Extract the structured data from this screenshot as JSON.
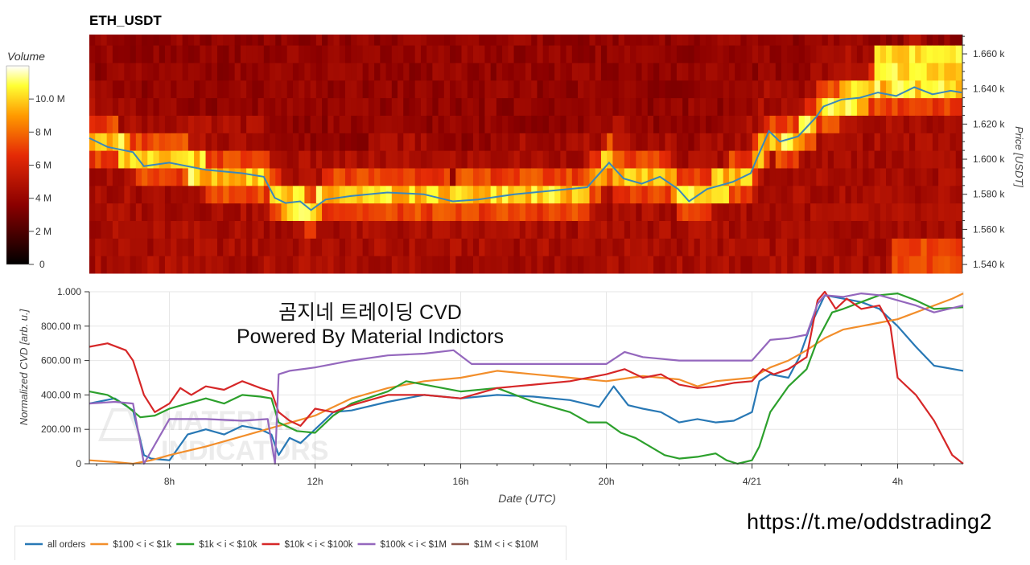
{
  "title": "ETH_USDT",
  "watermark": {
    "line1": "곰지네 트레이딩 CVD",
    "line2": "Powered By Material Indictors",
    "logo_text": [
      "MATERIAL",
      "INDICATORS"
    ]
  },
  "footer_url": "https://t.me/oddstrading2",
  "colors": {
    "all_orders": "#2878b5",
    "100_1k": "#f28e2b",
    "1k_10k": "#2ca02c",
    "10k_100k": "#d62728",
    "100k_1m": "#9467bd",
    "1m_10m": "#8c564b"
  },
  "chart_data": [
    {
      "type": "heatmap",
      "title": "ETH_USDT",
      "colorbar": {
        "label": "Volume",
        "ticks": [
          "0",
          "2 M",
          "4 M",
          "6 M",
          "8 M",
          "10.0 M"
        ],
        "tick_values": [
          0,
          2000000,
          4000000,
          6000000,
          8000000,
          10000000
        ],
        "range": [
          0,
          12000000
        ]
      },
      "y_axis": {
        "label": "Price [USDT]",
        "position": "right",
        "ticks": [
          "1.540 k",
          "1.560 k",
          "1.580 k",
          "1.600 k",
          "1.620 k",
          "1.640 k",
          "1.660 k"
        ],
        "tick_values": [
          1540,
          1560,
          1580,
          1600,
          1620,
          1640,
          1660
        ],
        "range": [
          1535,
          1671
        ]
      },
      "x_range_hours": [
        5.8,
        29.8
      ],
      "price_levels": [
        1540,
        1550,
        1560,
        1570,
        1580,
        1590,
        1600,
        1610,
        1620,
        1630,
        1640,
        1650,
        1660,
        1670
      ],
      "price_series": {
        "name": "price",
        "x_hours": [
          5.8,
          6.3,
          7.0,
          7.3,
          8.0,
          9.0,
          10.0,
          10.6,
          10.9,
          11.2,
          11.6,
          11.9,
          12.3,
          13.0,
          14.0,
          15.0,
          15.8,
          16.5,
          17.5,
          18.5,
          19.5,
          20.1,
          20.5,
          21.0,
          21.5,
          22.0,
          22.3,
          22.8,
          23.5,
          24.0,
          24.2,
          24.5,
          24.8,
          25.3,
          25.8,
          26.0,
          26.5,
          27.0,
          27.5,
          28.0,
          28.5,
          29.0,
          29.5,
          29.8
        ],
        "values": [
          1612,
          1607,
          1604,
          1596,
          1598,
          1594,
          1592,
          1590,
          1578,
          1575,
          1576,
          1571,
          1577,
          1579,
          1581,
          1580,
          1576,
          1577,
          1580,
          1582,
          1584,
          1598,
          1589,
          1586,
          1590,
          1583,
          1576,
          1583,
          1587,
          1592,
          1602,
          1616,
          1610,
          1613,
          1624,
          1630,
          1634,
          1635,
          1638,
          1636,
          1641,
          1637,
          1639,
          1638
        ]
      },
      "intensity_note": "volume by price band over time, 0-12M scale"
    },
    {
      "type": "line",
      "x_label": "Date (UTC)",
      "y_label": "Normalized CVD [arb. u.]",
      "x_ticks": [
        "8h",
        "12h",
        "16h",
        "20h",
        "4/21",
        "4h"
      ],
      "x_tick_values_hours": [
        8,
        12,
        16,
        20,
        24,
        28
      ],
      "x_range_hours": [
        5.8,
        29.8
      ],
      "y_ticks": [
        "0",
        "200.00 m",
        "400.00 m",
        "600.00 m",
        "800.00 m",
        "1.000"
      ],
      "y_tick_values": [
        0,
        0.2,
        0.4,
        0.6,
        0.8,
        1.0
      ],
      "ylim": [
        0,
        1.0
      ],
      "grid": true,
      "legend_position": "bottom",
      "series": [
        {
          "name": "all orders",
          "color_key": "all_orders",
          "x": [
            5.8,
            6.5,
            7.0,
            7.3,
            7.5,
            8.0,
            8.5,
            9.0,
            9.5,
            10.0,
            10.5,
            10.8,
            11.0,
            11.3,
            11.6,
            12.0,
            12.5,
            13.0,
            14.0,
            15.0,
            16.0,
            17.0,
            18.0,
            19.0,
            19.8,
            20.2,
            20.6,
            21.0,
            21.5,
            22.0,
            22.5,
            23.0,
            23.5,
            24.0,
            24.2,
            24.5,
            25.0,
            25.3,
            25.6,
            26.0,
            26.5,
            27.0,
            27.5,
            28.0,
            28.5,
            29.0,
            29.8
          ],
          "y": [
            0.35,
            0.38,
            0.31,
            0.05,
            0.03,
            0.02,
            0.17,
            0.2,
            0.17,
            0.22,
            0.2,
            0.17,
            0.05,
            0.15,
            0.12,
            0.2,
            0.3,
            0.31,
            0.36,
            0.4,
            0.38,
            0.4,
            0.39,
            0.37,
            0.33,
            0.45,
            0.34,
            0.32,
            0.3,
            0.24,
            0.26,
            0.24,
            0.25,
            0.3,
            0.48,
            0.52,
            0.5,
            0.62,
            0.8,
            0.98,
            0.96,
            0.94,
            0.9,
            0.8,
            0.68,
            0.57,
            0.54
          ]
        },
        {
          "name": "$100 < i < $1k",
          "color_key": "100_1k",
          "x": [
            5.8,
            6.5,
            7.0,
            7.5,
            8.0,
            9.0,
            10.0,
            11.0,
            12.0,
            13.0,
            14.0,
            15.0,
            16.0,
            17.0,
            18.0,
            19.0,
            20.0,
            21.0,
            22.0,
            22.5,
            23.0,
            23.5,
            24.0,
            24.5,
            25.0,
            25.5,
            26.0,
            26.5,
            27.0,
            27.5,
            28.0,
            28.5,
            29.0,
            29.5,
            29.8
          ],
          "y": [
            0.02,
            0.01,
            0.0,
            0.02,
            0.05,
            0.1,
            0.16,
            0.22,
            0.28,
            0.38,
            0.44,
            0.48,
            0.5,
            0.54,
            0.52,
            0.5,
            0.48,
            0.51,
            0.49,
            0.45,
            0.48,
            0.49,
            0.5,
            0.56,
            0.6,
            0.66,
            0.73,
            0.78,
            0.8,
            0.82,
            0.84,
            0.88,
            0.92,
            0.96,
            0.99
          ]
        },
        {
          "name": "$1k < i < $10k",
          "color_key": "1k_10k",
          "x": [
            5.8,
            6.3,
            6.8,
            7.2,
            7.6,
            8.0,
            8.5,
            9.0,
            9.5,
            10.0,
            10.5,
            10.8,
            11.0,
            11.5,
            12.0,
            12.5,
            13.0,
            14.0,
            14.5,
            15.0,
            16.0,
            17.0,
            18.0,
            19.0,
            19.5,
            20.0,
            20.4,
            20.8,
            21.2,
            21.6,
            22.0,
            22.5,
            23.0,
            23.3,
            23.6,
            24.0,
            24.2,
            24.5,
            25.0,
            25.5,
            25.8,
            26.2,
            26.5,
            27.0,
            27.5,
            28.0,
            28.5,
            29.0,
            29.8
          ],
          "y": [
            0.42,
            0.4,
            0.34,
            0.27,
            0.28,
            0.32,
            0.35,
            0.38,
            0.35,
            0.4,
            0.39,
            0.38,
            0.24,
            0.19,
            0.18,
            0.28,
            0.35,
            0.42,
            0.48,
            0.46,
            0.42,
            0.44,
            0.36,
            0.3,
            0.24,
            0.24,
            0.18,
            0.15,
            0.1,
            0.05,
            0.03,
            0.04,
            0.06,
            0.02,
            0.0,
            0.02,
            0.1,
            0.3,
            0.45,
            0.55,
            0.72,
            0.88,
            0.9,
            0.94,
            0.98,
            0.99,
            0.95,
            0.9,
            0.91
          ]
        },
        {
          "name": "$10k < i < $100k",
          "color_key": "10k_100k",
          "x": [
            5.8,
            6.3,
            6.8,
            7.0,
            7.3,
            7.6,
            8.0,
            8.3,
            8.6,
            9.0,
            9.5,
            10.0,
            10.5,
            10.8,
            11.0,
            11.3,
            11.6,
            12.0,
            12.5,
            13.0,
            14.0,
            15.0,
            16.0,
            17.0,
            18.0,
            19.0,
            20.0,
            20.5,
            21.0,
            21.5,
            22.0,
            22.5,
            23.0,
            23.5,
            24.0,
            24.3,
            24.6,
            25.0,
            25.5,
            25.8,
            26.0,
            26.3,
            26.6,
            27.0,
            27.5,
            27.8,
            28.0,
            28.5,
            29.0,
            29.5,
            29.8
          ],
          "y": [
            0.68,
            0.7,
            0.66,
            0.6,
            0.4,
            0.3,
            0.35,
            0.44,
            0.4,
            0.45,
            0.43,
            0.48,
            0.44,
            0.42,
            0.3,
            0.25,
            0.22,
            0.32,
            0.3,
            0.34,
            0.4,
            0.4,
            0.38,
            0.44,
            0.46,
            0.48,
            0.52,
            0.55,
            0.5,
            0.52,
            0.46,
            0.44,
            0.45,
            0.47,
            0.48,
            0.55,
            0.52,
            0.55,
            0.62,
            0.95,
            1.0,
            0.9,
            0.96,
            0.9,
            0.92,
            0.8,
            0.5,
            0.4,
            0.25,
            0.05,
            0.0
          ]
        },
        {
          "name": "$100k < i < $1M",
          "color_key": "100k_1m",
          "x": [
            5.8,
            6.5,
            7.0,
            7.2,
            7.3,
            8.0,
            9.0,
            10.0,
            10.7,
            10.9,
            11.0,
            11.3,
            12.0,
            13.0,
            14.0,
            15.0,
            15.8,
            16.3,
            17.0,
            18.0,
            19.0,
            20.0,
            20.5,
            21.0,
            22.0,
            23.0,
            24.0,
            24.5,
            25.0,
            25.5,
            25.8,
            26.0,
            26.5,
            27.0,
            27.5,
            28.0,
            28.5,
            29.0,
            29.8
          ],
          "y": [
            0.35,
            0.36,
            0.35,
            0.12,
            0.0,
            0.26,
            0.26,
            0.25,
            0.26,
            0.0,
            0.52,
            0.54,
            0.56,
            0.6,
            0.63,
            0.64,
            0.66,
            0.58,
            0.58,
            0.58,
            0.58,
            0.58,
            0.65,
            0.62,
            0.6,
            0.6,
            0.6,
            0.72,
            0.73,
            0.75,
            0.93,
            0.98,
            0.97,
            0.99,
            0.98,
            0.95,
            0.92,
            0.88,
            0.92
          ]
        },
        {
          "name": "$1M < i < $10M",
          "color_key": "1m_10m",
          "x": [],
          "y": []
        }
      ]
    }
  ]
}
